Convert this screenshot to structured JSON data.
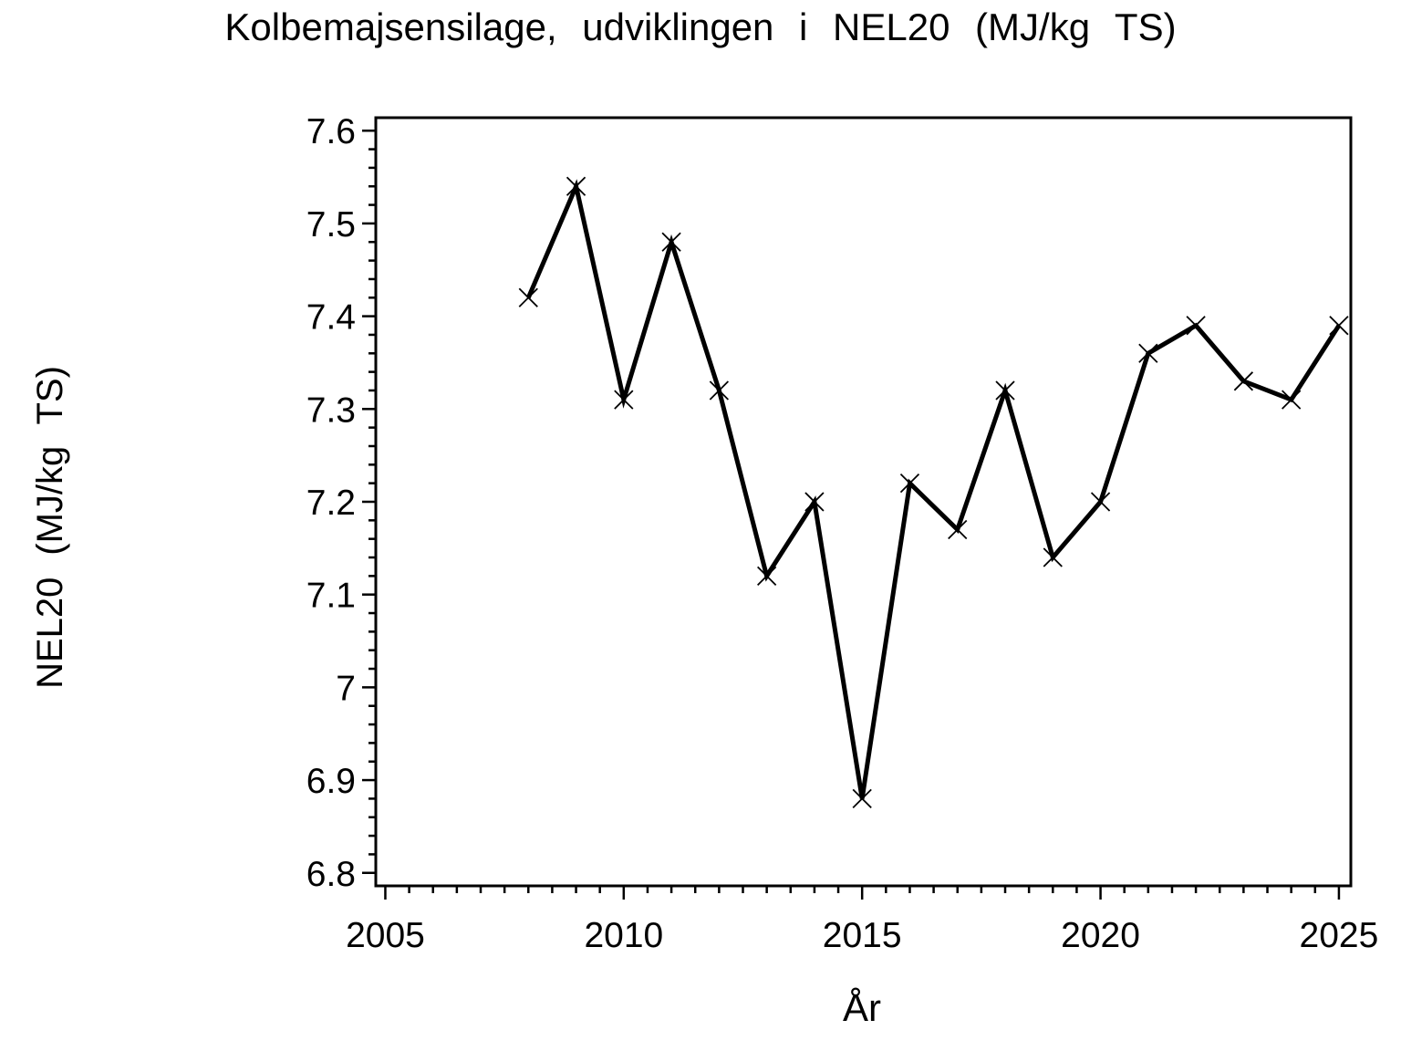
{
  "page": {
    "background": "#ffffff",
    "foreground": "#000000"
  },
  "chart_data": {
    "type": "line",
    "title": "Kolbemajsensilage, udviklingen i NEL20 (MJ/kg TS)",
    "xlabel": "År",
    "ylabel": "NEL20 (MJ/kg TS)",
    "x": [
      2008,
      2009,
      2010,
      2011,
      2012,
      2013,
      2014,
      2015,
      2016,
      2017,
      2018,
      2019,
      2020,
      2021,
      2022,
      2023,
      2024,
      2025
    ],
    "series": [
      {
        "name": "NEL20 (MJ/kg TS)",
        "values": [
          7.42,
          7.54,
          7.31,
          7.48,
          7.32,
          7.12,
          7.2,
          6.88,
          7.22,
          7.17,
          7.32,
          7.14,
          7.2,
          7.36,
          7.39,
          7.33,
          7.31,
          7.39
        ]
      }
    ],
    "x_ticks": {
      "major": [
        2005,
        2010,
        2015,
        2020,
        2025
      ],
      "labels": [
        "2005",
        "2010",
        "2015",
        "2020",
        "2025"
      ],
      "minor_step": 0.5
    },
    "y_ticks": {
      "major": [
        6.8,
        6.9,
        7.0,
        7.1,
        7.2,
        7.3,
        7.4,
        7.5,
        7.6
      ],
      "labels": [
        "6.8",
        "6.9",
        "7",
        "7.1",
        "7.2",
        "7.3",
        "7.4",
        "7.5",
        "7.6"
      ],
      "minor_step": 0.02
    },
    "xlim": [
      2004.8,
      2025.25
    ],
    "ylim": [
      6.786,
      7.614
    ],
    "grid": false,
    "legend": "none",
    "marker": "x",
    "line_color": "#000000",
    "axis_color": "#000000",
    "background": "#ffffff"
  }
}
